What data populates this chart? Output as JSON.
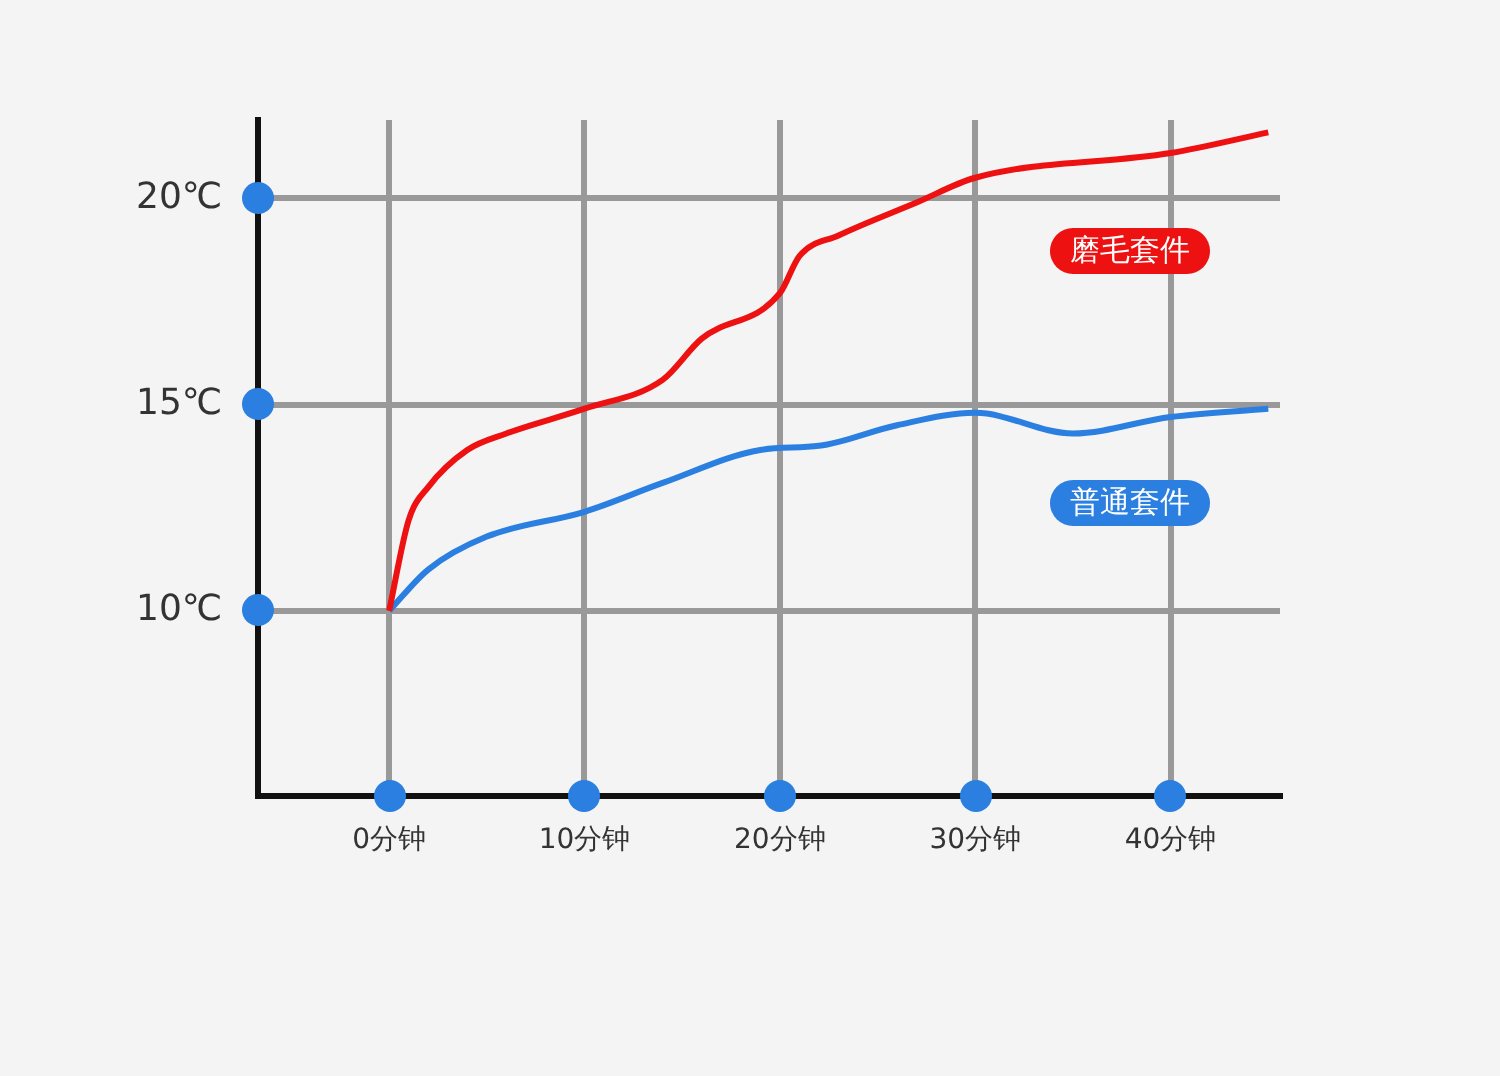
{
  "chart_data": {
    "type": "line",
    "x": [
      0,
      1,
      2,
      4,
      6,
      10,
      14,
      16,
      20,
      21,
      23,
      27,
      30,
      40,
      45
    ],
    "series": [
      {
        "name": "磨毛套件",
        "color": "#ee1111",
        "values": [
          10,
          12.2,
          13.0,
          13.9,
          14.3,
          14.9,
          15.6,
          16.6,
          17.7,
          18.6,
          19.1,
          19.9,
          20.5,
          21.1,
          21.6
        ]
      },
      {
        "name": "普通套件",
        "color": "#2a7fe0",
        "x": [
          0,
          2,
          5,
          10,
          14,
          19,
          22,
          26,
          30,
          35,
          40,
          45
        ],
        "values": [
          10,
          11.0,
          11.8,
          12.4,
          13.1,
          13.9,
          14.0,
          14.5,
          14.8,
          14.3,
          14.7,
          14.9
        ]
      }
    ],
    "xlim": [
      -6.7,
      45.6
    ],
    "xticks": [
      {
        "value": 0,
        "label": "0分钟"
      },
      {
        "value": 10,
        "label": "10分钟"
      },
      {
        "value": 20,
        "label": "20分钟"
      },
      {
        "value": 30,
        "label": "30分钟"
      },
      {
        "value": 40,
        "label": "40分钟"
      }
    ],
    "ylim": [
      5.5,
      21.9
    ],
    "yticks": [
      {
        "value": 10,
        "label": "10℃"
      },
      {
        "value": 15,
        "label": "15℃"
      },
      {
        "value": 20,
        "label": "20℃"
      }
    ],
    "grid": true,
    "legend": false
  }
}
